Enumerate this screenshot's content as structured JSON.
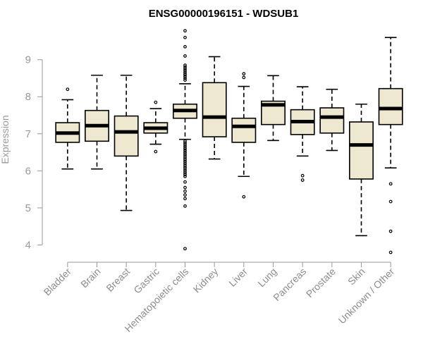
{
  "chart_data": {
    "type": "boxplot",
    "title": "ENSG00000196151 - WDSUB1",
    "xlabel": "",
    "ylabel": "Expression",
    "ylim": [
      3.8,
      9.85
    ],
    "yticks": [
      4,
      5,
      6,
      7,
      8,
      9
    ],
    "categories": [
      "Bladder",
      "Brain",
      "Breast",
      "Gastric",
      "Hematopoietic cells",
      "Kidney",
      "Liver",
      "Lung",
      "Pancreas",
      "Prostate",
      "Skin",
      "Unknown / Other"
    ],
    "boxes": [
      {
        "name": "Bladder",
        "whisker_low": 6.05,
        "q1": 6.77,
        "median": 7.02,
        "q3": 7.3,
        "whisker_high": 7.92,
        "outliers": [
          8.2
        ]
      },
      {
        "name": "Brain",
        "whisker_low": 6.05,
        "q1": 6.8,
        "median": 7.22,
        "q3": 7.63,
        "whisker_high": 8.58,
        "outliers": []
      },
      {
        "name": "Breast",
        "whisker_low": 4.93,
        "q1": 6.4,
        "median": 7.05,
        "q3": 7.48,
        "whisker_high": 8.58,
        "outliers": []
      },
      {
        "name": "Gastric",
        "whisker_low": 6.72,
        "q1": 7.02,
        "median": 7.15,
        "q3": 7.3,
        "whisker_high": 7.68,
        "outliers": [
          7.85,
          6.52
        ]
      },
      {
        "name": "Hematopoietic cells",
        "whisker_low": 6.85,
        "q1": 7.42,
        "median": 7.63,
        "q3": 7.8,
        "whisker_high": 8.35,
        "outliers": [
          9.78,
          9.6,
          9.35,
          9.1,
          8.85,
          8.8,
          8.75,
          8.7,
          8.65,
          8.6,
          8.55,
          8.5,
          8.45,
          6.8,
          6.75,
          6.7,
          6.65,
          6.6,
          6.55,
          6.5,
          6.45,
          6.4,
          6.35,
          6.3,
          6.25,
          6.2,
          6.15,
          6.1,
          6.05,
          6.0,
          5.95,
          5.9,
          5.85,
          5.7,
          5.55,
          5.45,
          5.35,
          5.25,
          5.05,
          3.9
        ]
      },
      {
        "name": "Kidney",
        "whisker_low": 6.32,
        "q1": 6.92,
        "median": 7.45,
        "q3": 8.38,
        "whisker_high": 9.08,
        "outliers": []
      },
      {
        "name": "Liver",
        "whisker_low": 5.85,
        "q1": 6.77,
        "median": 7.2,
        "q3": 7.42,
        "whisker_high": 8.28,
        "outliers": [
          8.62,
          8.52,
          5.3
        ]
      },
      {
        "name": "Lung",
        "whisker_low": 6.82,
        "q1": 7.25,
        "median": 7.78,
        "q3": 7.88,
        "whisker_high": 8.57,
        "outliers": []
      },
      {
        "name": "Pancreas",
        "whisker_low": 6.4,
        "q1": 6.98,
        "median": 7.33,
        "q3": 7.65,
        "whisker_high": 8.27,
        "outliers": [
          5.87,
          5.75
        ]
      },
      {
        "name": "Prostate",
        "whisker_low": 6.55,
        "q1": 7.02,
        "median": 7.45,
        "q3": 7.7,
        "whisker_high": 8.2,
        "outliers": []
      },
      {
        "name": "Skin",
        "whisker_low": 4.25,
        "q1": 5.78,
        "median": 6.7,
        "q3": 7.32,
        "whisker_high": 7.8,
        "outliers": []
      },
      {
        "name": "Unknown / Other",
        "whisker_low": 6.08,
        "q1": 7.25,
        "median": 7.68,
        "q3": 8.22,
        "whisker_high": 9.6,
        "outliers": [
          5.65,
          5.17,
          4.37,
          3.8
        ]
      }
    ],
    "colors": {
      "box_fill": "#efe8d0",
      "box_stroke": "#000000",
      "axis": "#999999",
      "label": "#999999"
    },
    "grid": false,
    "legend": "none"
  }
}
